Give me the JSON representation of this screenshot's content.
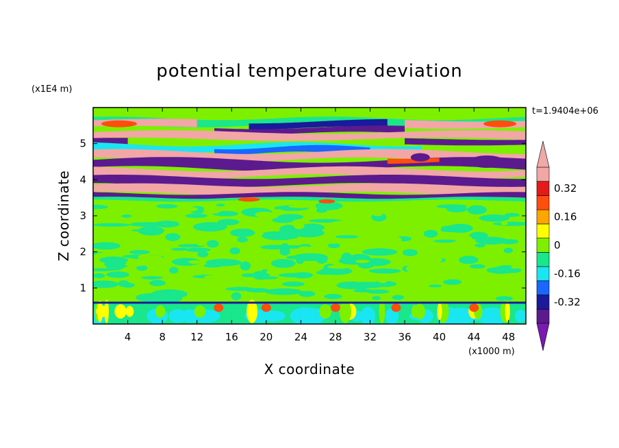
{
  "chart_data": {
    "type": "heatmap",
    "title": "potential temperature deviation",
    "xlabel": "X coordinate",
    "ylabel": "Z coordinate",
    "x_unit": "(x1000 m)",
    "y_unit": "(x1E4 m)",
    "time_label": "t=1.9404e+06",
    "xlim": [
      0,
      50
    ],
    "ylim": [
      0,
      6
    ],
    "x_ticks": [
      4,
      8,
      12,
      16,
      20,
      24,
      28,
      32,
      36,
      40,
      44,
      48
    ],
    "y_ticks": [
      1,
      2,
      3,
      4,
      5
    ],
    "colorbar": {
      "levels": [
        -0.4,
        -0.32,
        -0.24,
        -0.16,
        -0.08,
        0,
        0.08,
        0.16,
        0.24,
        0.32,
        0.4
      ],
      "labels": [
        "0.32",
        "0.16",
        "0",
        "-0.16",
        "-0.32"
      ],
      "label_values": [
        0.32,
        0.16,
        0,
        -0.16,
        -0.32
      ],
      "colors_bottom_to_top": [
        "#5c1a8f",
        "#1a1a9c",
        "#1a66ff",
        "#19e6f0",
        "#1ae68c",
        "#7df000",
        "#ffff00",
        "#ffa500",
        "#ff4d0d",
        "#e61a1a",
        "#f2a6a6"
      ],
      "min_color": "#7a1ab0",
      "max_color": "#f0a8a8"
    },
    "bands": [
      {
        "z_from": 5.65,
        "z_to": 6.0,
        "value": 0.0,
        "note": "green top"
      },
      {
        "z_from": 5.45,
        "z_to": 5.65,
        "value": 0.4,
        "note": "pink/red near edges"
      },
      {
        "z_from": 5.2,
        "z_to": 5.45,
        "value": -0.4,
        "note": "purple/blue centre"
      },
      {
        "z_from": 4.95,
        "z_to": 5.2,
        "value": 0.4,
        "note": "pink"
      },
      {
        "z_from": 4.7,
        "z_to": 4.95,
        "value": -0.2,
        "note": "blue/cyan"
      },
      {
        "z_from": 4.35,
        "z_to": 4.7,
        "value": -0.4,
        "note": "purple"
      },
      {
        "z_from": 4.1,
        "z_to": 4.35,
        "value": 0.4,
        "note": "pink"
      },
      {
        "z_from": 3.85,
        "z_to": 4.1,
        "value": -0.4,
        "note": "purple"
      },
      {
        "z_from": 3.6,
        "z_to": 3.85,
        "value": 0.4,
        "note": "pink"
      },
      {
        "z_from": 3.45,
        "z_to": 3.6,
        "value": -0.4,
        "note": "purple"
      },
      {
        "z_from": 0.6,
        "z_to": 3.45,
        "value": 0.0,
        "note": "green mottled"
      },
      {
        "z_from": 0.55,
        "z_to": 0.62,
        "value": -0.35,
        "note": "thin blue line"
      },
      {
        "z_from": 0.0,
        "z_to": 0.55,
        "value": 0.0,
        "note": "mixed boundary layer"
      }
    ]
  }
}
